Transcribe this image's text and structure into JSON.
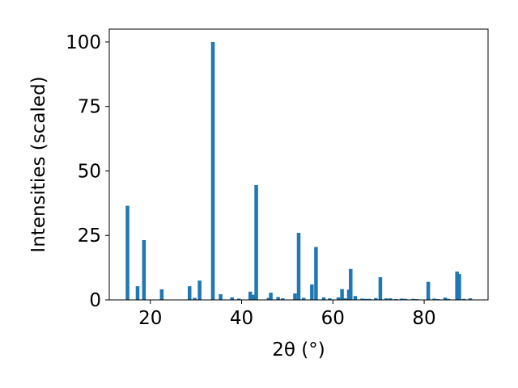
{
  "chart_data": {
    "type": "bar",
    "xlabel": "2θ (°)",
    "ylabel": "Intensities (scaled)",
    "xlim": [
      11,
      94
    ],
    "ylim": [
      0,
      105
    ],
    "xticks": [
      20,
      40,
      60,
      80
    ],
    "yticks": [
      0,
      25,
      50,
      75,
      100
    ],
    "grid": false,
    "color": "#1f77b4",
    "x": [
      15.0,
      17.2,
      18.6,
      22.5,
      28.6,
      29.7,
      30.8,
      33.7,
      35.4,
      37.9,
      39.4,
      41.9,
      42.6,
      43.2,
      45.9,
      46.4,
      48.0,
      49.0,
      51.7,
      52.5,
      53.6,
      55.4,
      56.3,
      58.0,
      59.3,
      61.2,
      62.0,
      62.7,
      63.5,
      63.9,
      64.9,
      66.4,
      67.2,
      68.0,
      69.4,
      70.4,
      71.7,
      72.6,
      73.8,
      75.1,
      75.9,
      77.6,
      78.3,
      80.9,
      82.2,
      83.0,
      84.6,
      85.3,
      87.2,
      87.7,
      88.7,
      90.1
    ],
    "values": [
      36.5,
      5.3,
      23.2,
      4.1,
      5.3,
      0.8,
      7.5,
      100.0,
      2.2,
      1.0,
      0.5,
      3.2,
      2.0,
      44.5,
      0.8,
      2.8,
      1.1,
      0.6,
      2.5,
      26.0,
      0.8,
      6.0,
      20.5,
      1.0,
      0.6,
      1.0,
      4.2,
      0.6,
      4.0,
      12.0,
      1.5,
      0.5,
      0.4,
      0.4,
      0.7,
      8.8,
      0.6,
      0.6,
      0.3,
      0.5,
      0.4,
      0.4,
      0.3,
      7.0,
      0.5,
      0.3,
      0.9,
      0.4,
      11.0,
      10.0,
      0.4,
      0.6
    ]
  }
}
